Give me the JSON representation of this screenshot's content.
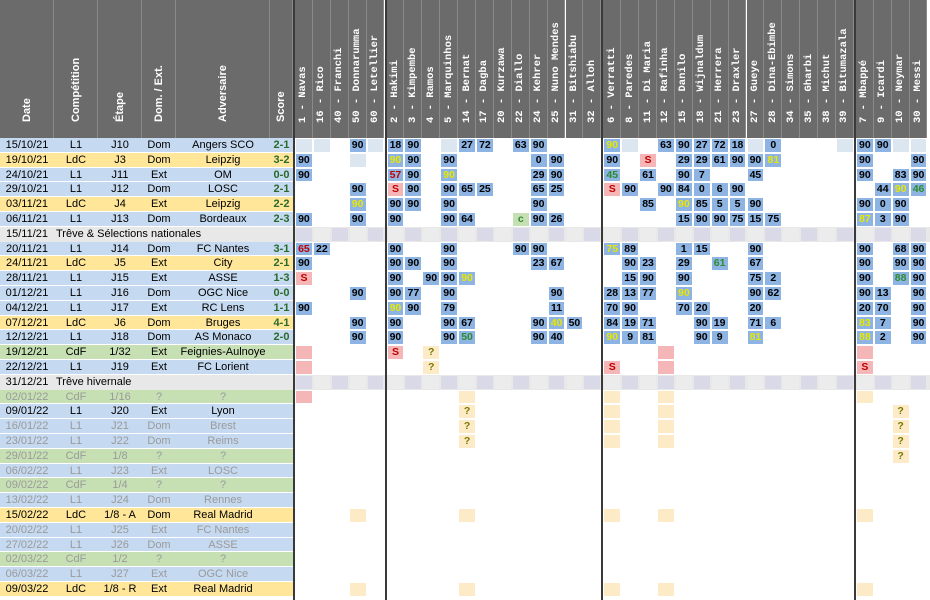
{
  "headers": {
    "date": "Date",
    "competition": "Compétition",
    "etape": "Étape",
    "dom_ext": "Dom. / Ext.",
    "adversaire": "Adversaire",
    "score": "Score"
  },
  "players": [
    "1 - Navas",
    "16 - Rico",
    "40 - Franchi",
    "50 - Donnarumma",
    "60 - Letellier",
    "2 - Hakimi",
    "3 - Kimpembe",
    "4 - Ramos",
    "5 - Marquinhos",
    "14 - Bernat",
    "17 - Dagba",
    "20 - Kurzawa",
    "22 - Diallo",
    "24 - Kehrer",
    "25 - Nuno Mendes",
    "31 - Bitshiabu",
    "32 - Alloh",
    "6 - Verratti",
    "8 - Paredes",
    "11 - Di Maria",
    "12 - Rafinha",
    "15 - Danilo",
    "18 - Wijnaldum",
    "21 - Herrera",
    "23 - Draxler",
    "27 - Gueye",
    "28 - Dina-Ebimbe",
    "34 - Simons",
    "35 - Gharbi",
    "38 - Michut",
    "39 - Bitumazala",
    "7 - Mbappé",
    "9 - Icardi",
    "10 - Neymar",
    "30 - Messi"
  ],
  "colors": {
    "l1": "#c5d9f1",
    "ldc": "#ffe699",
    "cdf": "#c6e0b4",
    "pending": "#bfbfbf",
    "header": "#6b6b6b",
    "min": "#8db4e2",
    "bench": "#dce6f1",
    "red": "#f4b6b6",
    "future": "#fdebc7",
    "yellow": "#ffff00"
  },
  "matches": [
    {
      "date": "15/10/21",
      "comp": "L1",
      "etape": "J10",
      "venue": "Dom",
      "opp": "Angers SCO",
      "score": "2-1",
      "cells": {
        "0": "",
        "1": "b",
        "3": "90",
        "4": "b",
        "5": "18",
        "6": "90",
        "8": "b",
        "9": "27",
        "10": "72",
        "12": "63",
        "13": "90",
        "17": "90|y",
        "18": "b",
        "20": "63",
        "21": "90",
        "22": "27",
        "23": "72",
        "24": "18",
        "25": "b",
        "26": "0",
        "30": "b",
        "31": "90",
        "32": "90",
        "33": "b",
        "34": "b"
      }
    },
    {
      "date": "19/10/21",
      "comp": "LdC",
      "etape": "J3",
      "venue": "Dom",
      "opp": "Leipzig",
      "score": "3-2",
      "cells": {
        "0": "90",
        "3": "b",
        "5": "90|y",
        "6": "90",
        "8": "90",
        "13": "0",
        "14": "90",
        "17": "90",
        "19": "S|r",
        "21": "29",
        "22": "29",
        "23": "61",
        "24": "90",
        "25": "90",
        "26": "81|y",
        "31": "90",
        "34": "90"
      }
    },
    {
      "date": "24/10/21",
      "comp": "L1",
      "etape": "J11",
      "venue": "Ext",
      "opp": "OM",
      "score": "0-0",
      "cells": {
        "0": "90",
        "5": "57|r",
        "6": "90",
        "8": "90|y",
        "13": "29",
        "14": "90",
        "17": "45|g",
        "19": "61",
        "21": "90",
        "22": "7",
        "25": "45",
        "31": "90",
        "33": "83",
        "34": "90"
      }
    },
    {
      "date": "29/10/21",
      "comp": "L1",
      "etape": "J12",
      "venue": "Dom",
      "opp": "LOSC",
      "score": "2-1",
      "cells": {
        "3": "90",
        "5": "S|r",
        "6": "90",
        "8": "90",
        "9": "65",
        "10": "25",
        "13": "65",
        "14": "25",
        "17": "S|r",
        "18": "90",
        "20": "90",
        "21": "84",
        "22": "0",
        "23": "6",
        "24": "90",
        "32": "44",
        "33": "90|y",
        "34": "46|g"
      }
    },
    {
      "date": "03/11/21",
      "comp": "LdC",
      "etape": "J4",
      "venue": "Ext",
      "opp": "Leipzig",
      "score": "2-2",
      "cells": {
        "3": "90|y",
        "5": "90",
        "6": "90",
        "8": "90",
        "13": "90",
        "19": "85",
        "21": "90|y",
        "22": "85",
        "23": "5",
        "24": "5",
        "25": "90",
        "31": "90",
        "32": "0",
        "33": "90"
      }
    },
    {
      "date": "06/11/21",
      "comp": "L1",
      "etape": "J13",
      "venue": "Dom",
      "opp": "Bordeaux",
      "score": "2-3",
      "cells": {
        "0": "90",
        "3": "90",
        "5": "90",
        "8": "90",
        "9": "64",
        "12": "c|g",
        "13": "90",
        "14": "26",
        "21": "15",
        "22": "90",
        "23": "90",
        "24": "75",
        "25": "15",
        "26": "75",
        "31": "87|y",
        "32": "3",
        "33": "90"
      }
    },
    {
      "date": "15/11/21",
      "opp": "Trêve & Sélections nationales",
      "span": true
    },
    {
      "date": "20/11/21",
      "comp": "L1",
      "etape": "J14",
      "venue": "Dom",
      "opp": "FC Nantes",
      "score": "3-1",
      "cells": {
        "0": "65|r",
        "1": "22",
        "5": "90",
        "8": "90",
        "12": "90",
        "13": "90",
        "17": "75|y",
        "18": "89",
        "21": "1",
        "22": "15",
        "25": "90",
        "31": "90",
        "33": "68",
        "34": "90"
      }
    },
    {
      "date": "24/11/21",
      "comp": "LdC",
      "etape": "J5",
      "venue": "Ext",
      "opp": "City",
      "score": "2-1",
      "cells": {
        "0": "90",
        "5": "90",
        "6": "90",
        "8": "90",
        "13": "23",
        "14": "67",
        "18": "90",
        "19": "23",
        "21": "29",
        "23": "61|g",
        "25": "67",
        "31": "90",
        "33": "90",
        "34": "90"
      }
    },
    {
      "date": "28/11/21",
      "comp": "L1",
      "etape": "J15",
      "venue": "Ext",
      "opp": "ASSE",
      "score": "1-3",
      "cells": {
        "0": "S|r",
        "5": "90",
        "7": "90",
        "8": "90",
        "9": "90|y",
        "18": "15",
        "19": "90",
        "21": "90",
        "25": "75",
        "26": "2",
        "31": "90",
        "33": "88|g",
        "34": "90"
      }
    },
    {
      "date": "01/12/21",
      "comp": "L1",
      "etape": "J16",
      "venue": "Dom",
      "opp": "OGC Nice",
      "score": "0-0",
      "cells": {
        "3": "90",
        "5": "90",
        "6": "77",
        "8": "90",
        "14": "90",
        "17": "28",
        "18": "13",
        "19": "77",
        "21": "90|y",
        "25": "90",
        "26": "62",
        "31": "90",
        "32": "13",
        "34": "90"
      }
    },
    {
      "date": "04/12/21",
      "comp": "L1",
      "etape": "J17",
      "venue": "Ext",
      "opp": "RC Lens",
      "score": "1-1",
      "cells": {
        "0": "90",
        "5": "90|y",
        "6": "90",
        "8": "79",
        "14": "11",
        "17": "70",
        "18": "90",
        "21": "70",
        "22": "20",
        "25": "20",
        "31": "20",
        "32": "70",
        "34": "90"
      }
    },
    {
      "date": "07/12/21",
      "comp": "LdC",
      "etape": "J6",
      "venue": "Dom",
      "opp": "Bruges",
      "score": "4-1",
      "cells": {
        "3": "90",
        "5": "90",
        "8": "90",
        "9": "67",
        "13": "90",
        "14": "40|y",
        "15": "50",
        "17": "84",
        "18": "19",
        "19": "71",
        "22": "90",
        "23": "19",
        "25": "71",
        "26": "6",
        "31": "83|y",
        "32": "7",
        "34": "90"
      }
    },
    {
      "date": "12/12/21",
      "comp": "L1",
      "etape": "J18",
      "venue": "Dom",
      "opp": "AS Monaco",
      "score": "2-0",
      "cells": {
        "3": "90",
        "5": "90",
        "8": "90",
        "9": "50|g",
        "13": "90",
        "14": "40",
        "17": "90|y",
        "18": "9",
        "19": "81",
        "22": "90",
        "23": "9",
        "25": "81|y",
        "31": "88|y",
        "32": "2",
        "34": "90"
      }
    },
    {
      "date": "19/12/21",
      "comp": "CdF",
      "etape": "1/32",
      "venue": "Ext",
      "opp": "Feignies-Aulnoye",
      "score": "",
      "cells": {
        "0": "red",
        "5": "S|r",
        "7": "?",
        "20": "red",
        "31": "red"
      }
    },
    {
      "date": "22/12/21",
      "comp": "L1",
      "etape": "J19",
      "venue": "Ext",
      "opp": "FC Lorient",
      "score": "",
      "cells": {
        "0": "red",
        "7": "?",
        "17": "S|r",
        "20": "red",
        "31": "S|r"
      }
    },
    {
      "date": "31/12/21",
      "opp": "Trêve hivernale",
      "span": true
    },
    {
      "date": "02/01/22",
      "comp": "CdF",
      "etape": "1/16",
      "venue": "?",
      "opp": "?",
      "score": "",
      "pending": true,
      "cells": {
        "0": "red",
        "9": "f",
        "17": "f",
        "20": "f",
        "31": "f"
      }
    },
    {
      "date": "09/01/22",
      "comp": "L1",
      "etape": "J20",
      "venue": "Ext",
      "opp": "Lyon",
      "score": "",
      "cells": {
        "9": "?",
        "17": "f",
        "20": "f",
        "33": "?"
      }
    },
    {
      "date": "16/01/22",
      "comp": "L1",
      "etape": "J21",
      "venue": "Dom",
      "opp": "Brest",
      "score": "",
      "pending": true,
      "cells": {
        "9": "?",
        "17": "f",
        "20": "f",
        "33": "?"
      }
    },
    {
      "date": "23/01/22",
      "comp": "L1",
      "etape": "J22",
      "venue": "Dom",
      "opp": "Reims",
      "score": "",
      "pending": true,
      "cells": {
        "9": "?",
        "17": "f",
        "20": "f",
        "33": "?"
      }
    },
    {
      "date": "29/01/22",
      "comp": "CdF",
      "etape": "1/8",
      "venue": "?",
      "opp": "?",
      "score": "",
      "pending": true,
      "cells": {
        "33": "?"
      }
    },
    {
      "date": "06/02/22",
      "comp": "L1",
      "etape": "J23",
      "venue": "Ext",
      "opp": "LOSC",
      "score": "",
      "pending": true,
      "cells": {}
    },
    {
      "date": "09/02/22",
      "comp": "CdF",
      "etape": "1/4",
      "venue": "?",
      "opp": "?",
      "score": "",
      "pending": true,
      "cells": {}
    },
    {
      "date": "13/02/22",
      "comp": "L1",
      "etape": "J24",
      "venue": "Dom",
      "opp": "Rennes",
      "score": "",
      "pending": true,
      "cells": {}
    },
    {
      "date": "15/02/22",
      "comp": "LdC",
      "etape": "1/8 - A",
      "venue": "Dom",
      "opp": "Real Madrid",
      "score": "",
      "cells": {
        "3": "f",
        "9": "f",
        "17": "f",
        "20": "f",
        "31": "f"
      }
    },
    {
      "date": "20/02/22",
      "comp": "L1",
      "etape": "J25",
      "venue": "Ext",
      "opp": "FC Nantes",
      "score": "",
      "pending": true,
      "cells": {}
    },
    {
      "date": "27/02/22",
      "comp": "L1",
      "etape": "J26",
      "venue": "Dom",
      "opp": "ASSE",
      "score": "",
      "pending": true,
      "cells": {}
    },
    {
      "date": "02/03/22",
      "comp": "CdF",
      "etape": "1/2",
      "venue": "?",
      "opp": "?",
      "score": "",
      "pending": true,
      "cells": {}
    },
    {
      "date": "06/03/22",
      "comp": "L1",
      "etape": "J27",
      "venue": "Ext",
      "opp": "OGC Nice",
      "score": "",
      "pending": true,
      "cells": {}
    },
    {
      "date": "09/03/22",
      "comp": "LdC",
      "etape": "1/8 - R",
      "venue": "Ext",
      "opp": "Real Madrid",
      "score": "",
      "cells": {
        "3": "f",
        "9": "f",
        "17": "f",
        "20": "f",
        "31": "f"
      }
    }
  ]
}
